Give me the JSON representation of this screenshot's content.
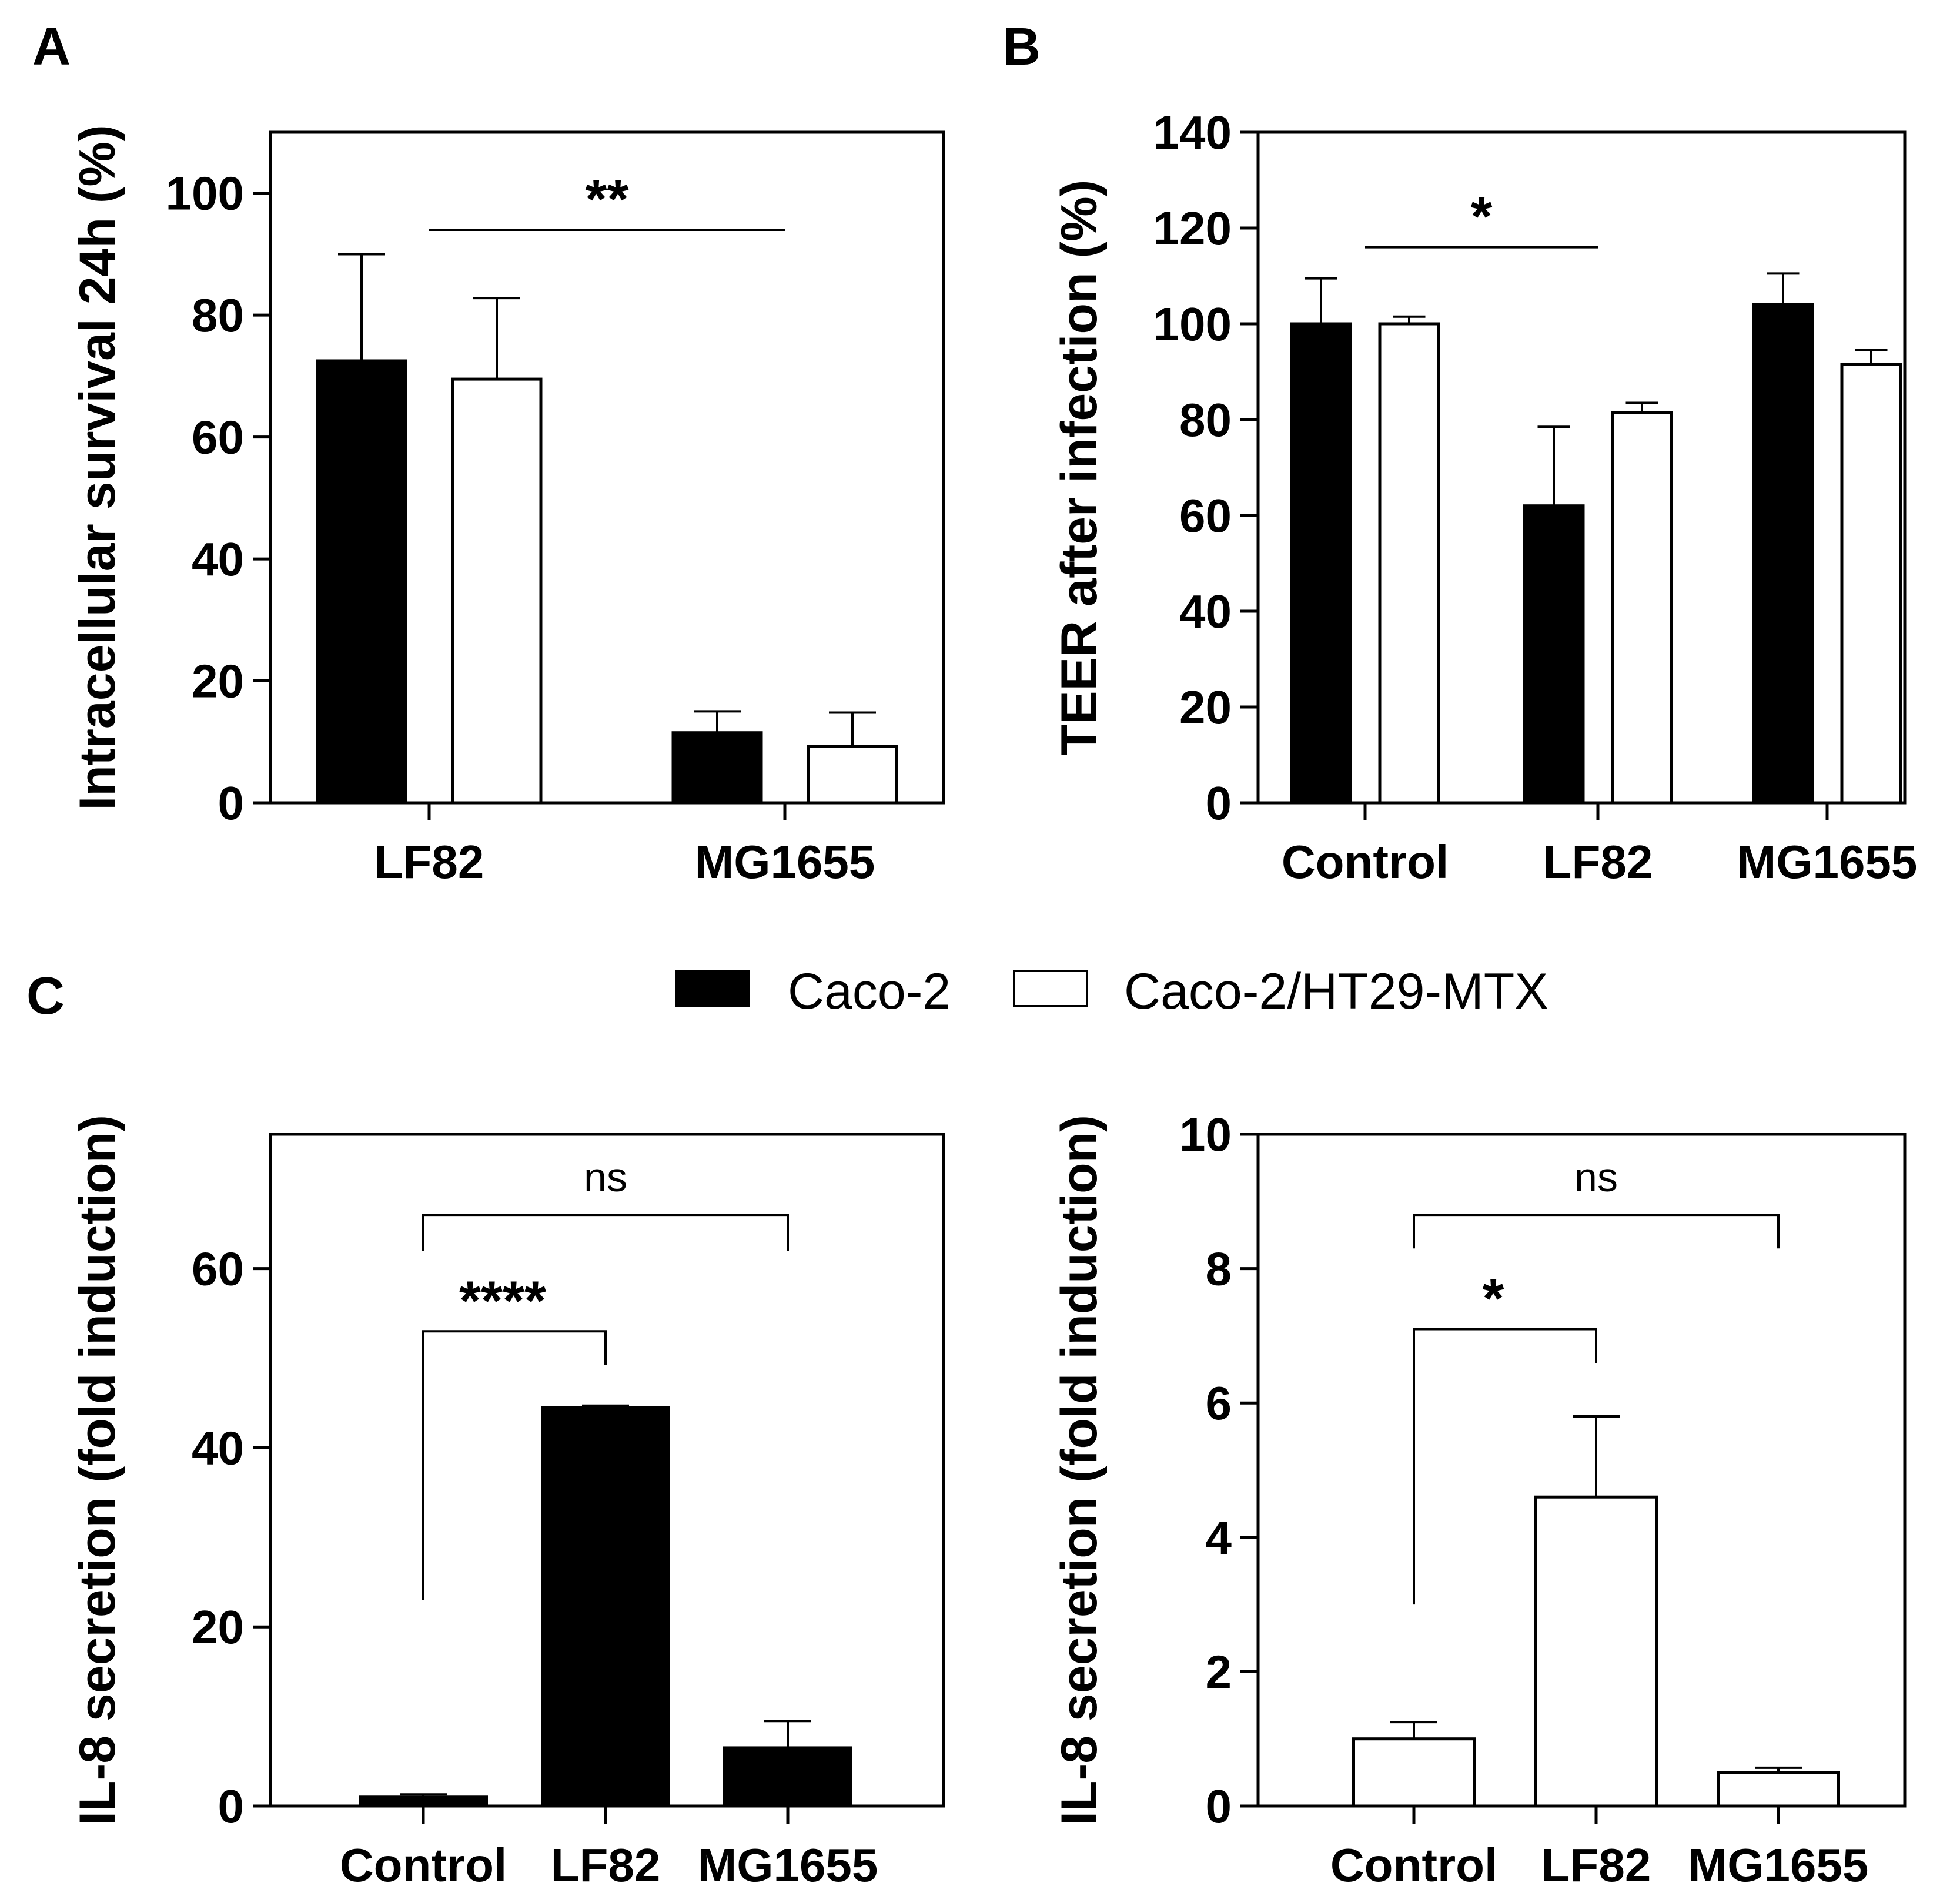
{
  "legend": {
    "series": [
      {
        "name": "Caco-2",
        "fill": "#000000"
      },
      {
        "name": "Caco-2/HT29-MTX",
        "fill": "#ffffff"
      }
    ]
  },
  "colors": {
    "caco2": "#000000",
    "coculture": "#ffffff",
    "axis": "#000000"
  },
  "chart_data": [
    {
      "panel": "A",
      "type": "bar",
      "ylabel": "Intracellular survival 24h (%)",
      "ylim": [
        0,
        110
      ],
      "yticks": [
        0,
        20,
        40,
        60,
        80,
        100
      ],
      "categories": [
        "LF82",
        "MG1655"
      ],
      "series": [
        {
          "name": "Caco-2",
          "values": [
            72.5,
            11.5
          ],
          "errors": [
            17.5,
            3.5
          ]
        },
        {
          "name": "Caco-2/HT29-MTX",
          "values": [
            69.5,
            9.3
          ],
          "errors": [
            13.3,
            5.5
          ]
        }
      ],
      "annotations": [
        {
          "text": "**",
          "from": "LF82",
          "to": "MG1655",
          "y": 94,
          "style": "line"
        }
      ]
    },
    {
      "panel": "B",
      "type": "bar",
      "ylabel": "TEER after infection (%)",
      "ylim": [
        0,
        140
      ],
      "yticks": [
        0,
        20,
        40,
        60,
        80,
        100,
        120,
        140
      ],
      "categories": [
        "Control",
        "LF82",
        "MG1655"
      ],
      "series": [
        {
          "name": "Caco-2",
          "values": [
            100,
            62,
            104
          ],
          "errors": [
            9.5,
            16.5,
            6.5
          ]
        },
        {
          "name": "Caco-2/HT29-MTX",
          "values": [
            100,
            81.5,
            91.5
          ],
          "errors": [
            1.5,
            2.0,
            3.0
          ]
        }
      ],
      "annotations": [
        {
          "text": "*",
          "from": "Control",
          "to": "LF82",
          "y": 116,
          "style": "line"
        }
      ]
    },
    {
      "panel": "C",
      "type": "bar",
      "ylabel": "IL-8 secretion (fold induction)",
      "ylim": [
        0,
        75
      ],
      "yticks": [
        0,
        20,
        40,
        60
      ],
      "categories": [
        "Control",
        "LF82",
        "MG1655"
      ],
      "series": [
        {
          "name": "Caco-2",
          "values": [
            1.0,
            44.5,
            6.5
          ],
          "errors": [
            0.3,
            0.2,
            3.0
          ]
        }
      ],
      "annotations": [
        {
          "text": "ns",
          "from": "Control",
          "to": "MG1655",
          "y": 66,
          "style": "bracket",
          "drop": 4
        },
        {
          "text": "****",
          "from": "Control",
          "to": "LF82",
          "y": 53,
          "style": "bracket",
          "drop": 30
        }
      ]
    },
    {
      "panel": "",
      "type": "bar",
      "ylabel": "IL-8 secretion (fold induction)",
      "ylim": [
        0,
        10
      ],
      "yticks": [
        0,
        2,
        4,
        6,
        8,
        10
      ],
      "categories": [
        "Control",
        "LF82",
        "MG1655"
      ],
      "series": [
        {
          "name": "Caco-2/HT29-MTX",
          "values": [
            1.0,
            4.6,
            0.5
          ],
          "errors": [
            0.25,
            1.2,
            0.07
          ]
        }
      ],
      "annotations": [
        {
          "text": "ns",
          "from": "Control",
          "to": "MG1655",
          "y": 8.8,
          "style": "bracket",
          "drop": 0.5
        },
        {
          "text": "*",
          "from": "Control",
          "to": "LF82",
          "y": 7.1,
          "style": "bracket",
          "drop": 4.1
        }
      ]
    }
  ]
}
